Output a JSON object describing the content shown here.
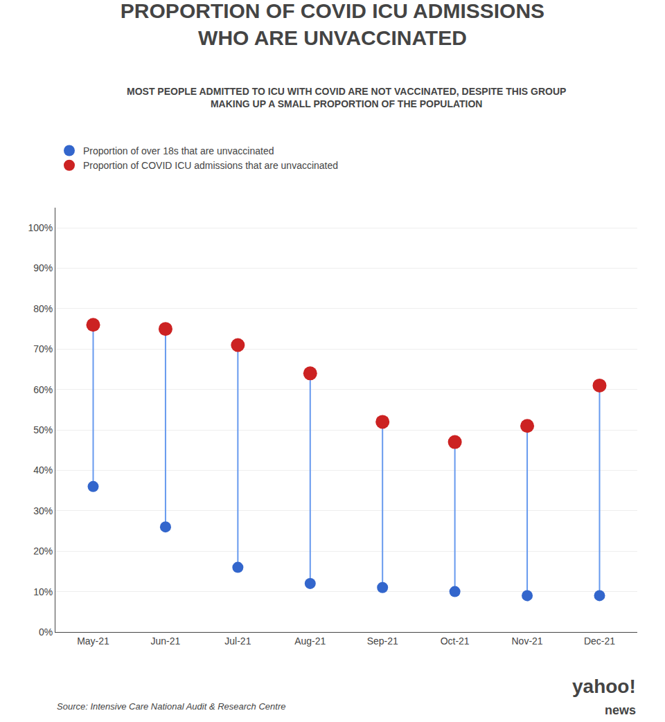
{
  "chart_data": {
    "type": "dumbbell",
    "title": "PROPORTION OF COVID ICU ADMISSIONS\nWHO ARE UNVACCINATED",
    "subtitle": "MOST PEOPLE ADMITTED TO ICU WITH COVID ARE NOT VACCINATED, DESPITE THIS GROUP\nMAKING UP A SMALL PROPORTION OF THE POPULATION",
    "categories": [
      "May-21",
      "Jun-21",
      "Jul-21",
      "Aug-21",
      "Sep-21",
      "Oct-21",
      "Nov-21",
      "Dec-21"
    ],
    "series": [
      {
        "name": "Proportion of over 18s that are unvaccinated",
        "color": "#3366cc",
        "marker": "circle",
        "values": [
          0.36,
          0.26,
          0.16,
          0.12,
          0.11,
          0.1,
          0.09,
          0.09
        ]
      },
      {
        "name": "Proportion of COVID ICU admissions that are unvaccinated",
        "color": "#cc2222",
        "marker": "circle",
        "values": [
          0.76,
          0.75,
          0.71,
          0.64,
          0.52,
          0.47,
          0.51,
          0.61
        ]
      }
    ],
    "color": "#6699ee",
    "ylim": [
      0,
      1.05
    ],
    "yticks": [
      {
        "value": 0,
        "label": "0%"
      },
      {
        "value": 0.1,
        "label": "10%"
      },
      {
        "value": 0.2,
        "label": "20%"
      },
      {
        "value": 0.3,
        "label": "30%"
      },
      {
        "value": 0.4,
        "label": "40%"
      },
      {
        "value": 0.5,
        "label": "50%"
      },
      {
        "value": 0.6,
        "label": "60%"
      },
      {
        "value": 0.7,
        "label": "70%"
      },
      {
        "value": 0.8,
        "label": "80%"
      },
      {
        "value": 0.9,
        "label": "90%"
      },
      {
        "value": 1.0,
        "label": "100%"
      }
    ],
    "grid": true,
    "legend": "top-left",
    "annotations": [
      "Source: Intensive Care National Audit & Research Centre",
      "yahoo!",
      "news"
    ]
  }
}
